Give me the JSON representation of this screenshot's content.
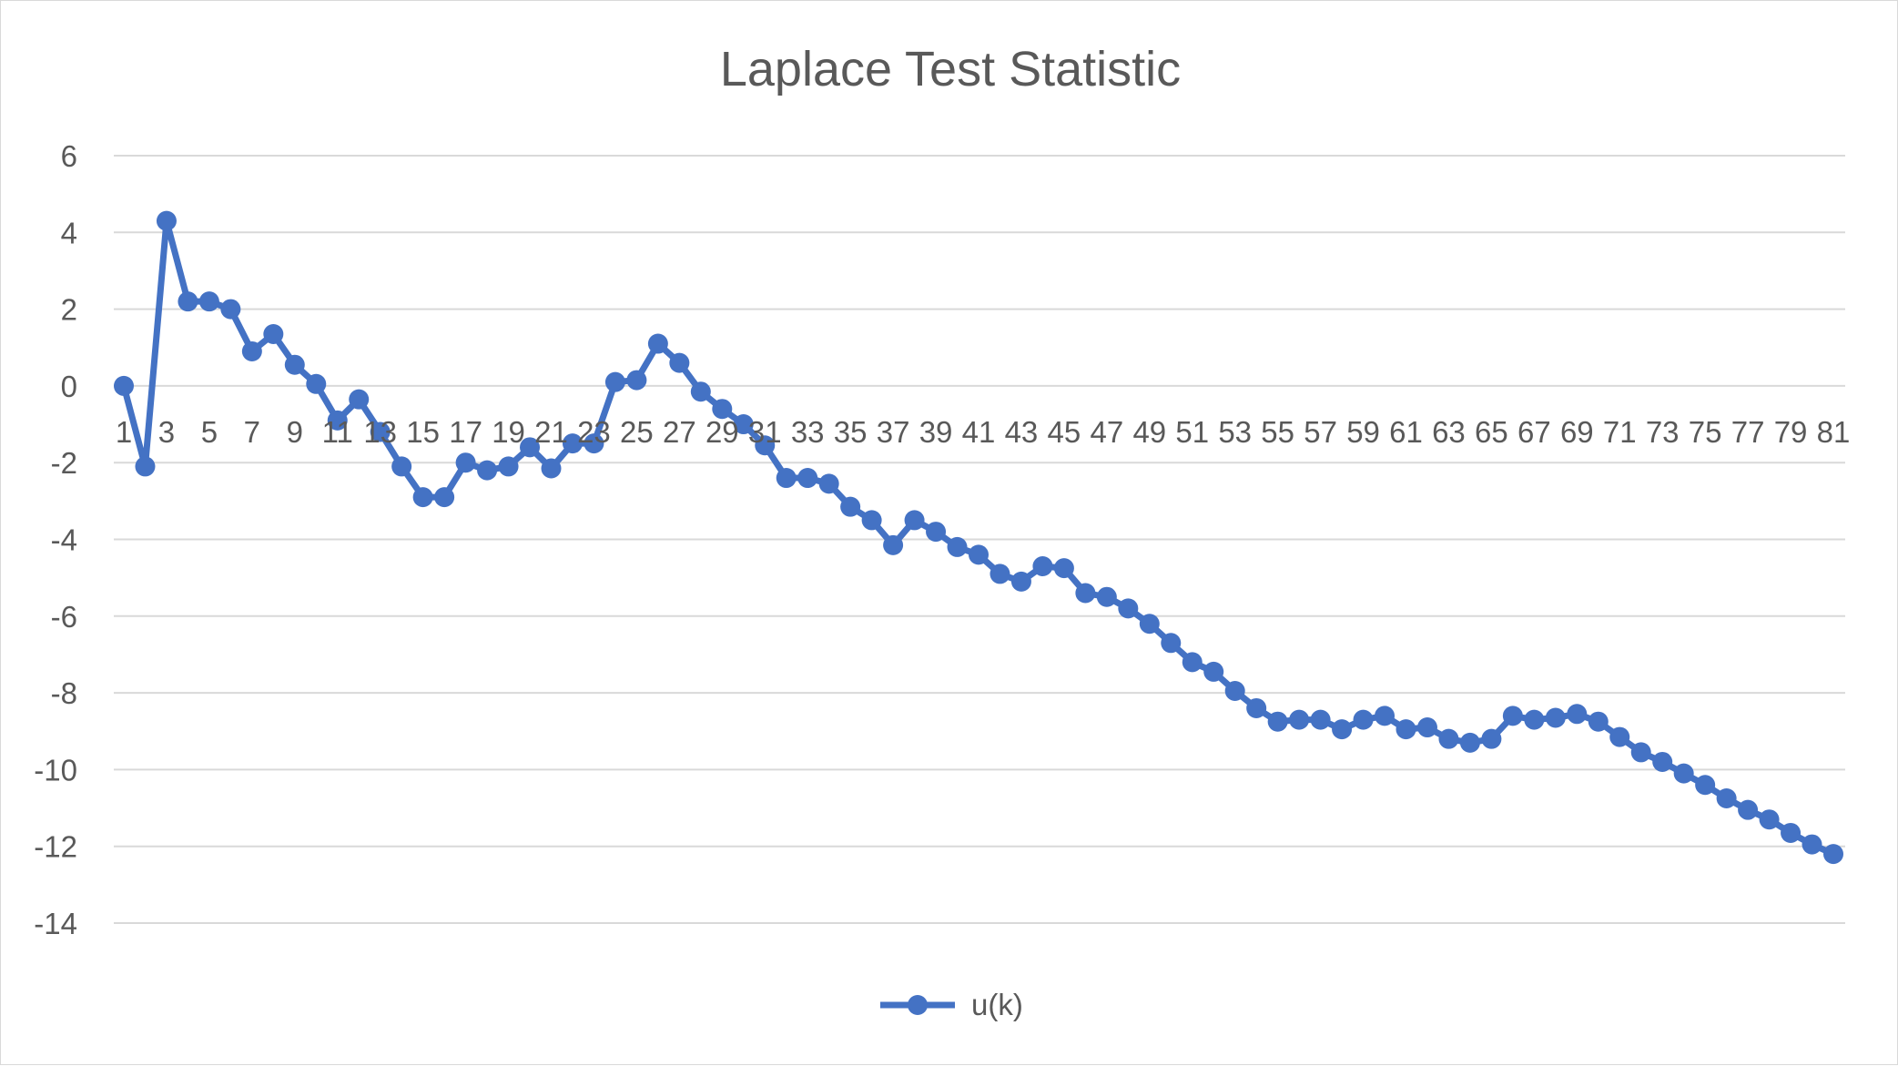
{
  "chart_data": {
    "type": "line",
    "title": "Laplace Test Statistic",
    "xlabel": "",
    "ylabel": "",
    "ylim": [
      -14,
      6
    ],
    "y_ticks": [
      6,
      4,
      2,
      0,
      -2,
      -4,
      -6,
      -8,
      -10,
      -12,
      -14
    ],
    "grid": true,
    "legend_position": "bottom",
    "x_tick_labels": [
      "1",
      "3",
      "5",
      "7",
      "9",
      "11",
      "13",
      "15",
      "17",
      "19",
      "21",
      "23",
      "25",
      "27",
      "29",
      "31",
      "33",
      "35",
      "37",
      "39",
      "41",
      "43",
      "45",
      "47",
      "49",
      "51",
      "53",
      "55",
      "57",
      "59",
      "61",
      "63",
      "65",
      "67",
      "69",
      "71",
      "73",
      "75",
      "77",
      "79",
      "81"
    ],
    "x": [
      1,
      2,
      3,
      4,
      5,
      6,
      7,
      8,
      9,
      10,
      11,
      12,
      13,
      14,
      15,
      16,
      17,
      18,
      19,
      20,
      21,
      22,
      23,
      24,
      25,
      26,
      27,
      28,
      29,
      30,
      31,
      32,
      33,
      34,
      35,
      36,
      37,
      38,
      39,
      40,
      41,
      42,
      43,
      44,
      45,
      46,
      47,
      48,
      49,
      50,
      51,
      52,
      53,
      54,
      55,
      56,
      57,
      58,
      59,
      60,
      61,
      62,
      63,
      64,
      65,
      66,
      67,
      68,
      69,
      70,
      71,
      72,
      73,
      74,
      75,
      76,
      77,
      78,
      79,
      80,
      81
    ],
    "series": [
      {
        "name": "u(k)",
        "color": "#4472c4",
        "marker": "circle",
        "values": [
          0.0,
          -2.1,
          4.3,
          2.2,
          2.2,
          2.0,
          0.9,
          1.35,
          0.55,
          0.05,
          -0.9,
          -0.35,
          -1.2,
          -2.1,
          -2.9,
          -2.9,
          -2.0,
          -2.2,
          -2.1,
          -1.6,
          -2.15,
          -1.5,
          -1.5,
          0.1,
          0.15,
          1.1,
          0.6,
          -0.15,
          -0.6,
          -1.0,
          -1.55,
          -2.4,
          -2.4,
          -2.55,
          -3.15,
          -3.5,
          -4.15,
          -3.5,
          -3.8,
          -4.2,
          -4.4,
          -4.9,
          -5.1,
          -4.7,
          -4.75,
          -5.4,
          -5.5,
          -5.8,
          -6.2,
          -6.7,
          -7.2,
          -7.45,
          -7.95,
          -8.4,
          -8.75,
          -8.7,
          -8.7,
          -8.95,
          -8.7,
          -8.6,
          -8.95,
          -8.9,
          -9.2,
          -9.3,
          -9.2,
          -8.6,
          -8.7,
          -8.65,
          -8.55,
          -8.75,
          -9.15,
          -9.55,
          -9.8,
          -10.1,
          -10.4,
          -10.75,
          -11.05,
          -11.3,
          -11.65,
          -11.95,
          -12.2
        ]
      }
    ]
  }
}
